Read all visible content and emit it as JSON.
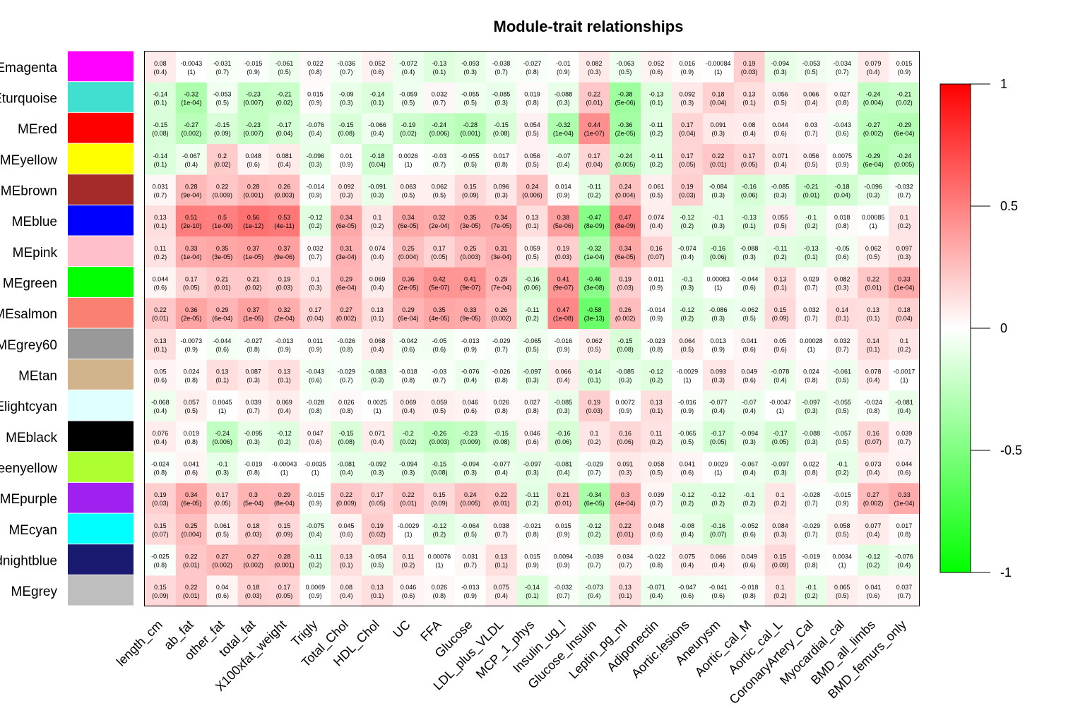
{
  "chart_data": {
    "type": "heatmap",
    "title": "Module-trait relationships",
    "rows": [
      "MEmagenta",
      "MEturquoise",
      "MEred",
      "MEyellow",
      "MEbrown",
      "MEblue",
      "MEpink",
      "MEgreen",
      "MEsalmon",
      "MEgrey60",
      "MEtan",
      "MElightcyan",
      "MEblack",
      "MEgreenyellow",
      "MEpurple",
      "MEcyan",
      "MEmidnightblue",
      "MEgrey"
    ],
    "row_colors": [
      "#ff00ff",
      "#40e0d0",
      "#ff0000",
      "#ffff00",
      "#a52a2a",
      "#0000ff",
      "#ffc0cb",
      "#00ff00",
      "#fa8072",
      "#999999",
      "#d2b48c",
      "#e0ffff",
      "#000000",
      "#adff2f",
      "#a020f0",
      "#00ffff",
      "#191970",
      "#bebebe"
    ],
    "columns": [
      "length_cm",
      "ab_fat",
      "other_fat",
      "total_fat",
      "X100xfat_weight",
      "Trigly",
      "Total_Chol",
      "HDL_Chol",
      "UC",
      "FFA",
      "Glucose",
      "LDL_plus_VLDL",
      "MCP_1_phys",
      "Insulin_ug_l",
      "Glucose_Insulin",
      "Leptin_pg_ml",
      "Adiponectin",
      "Aortic.lesions",
      "Aneurysm",
      "Aortic_cal_M",
      "Aortic_cal_L",
      "CoronaryArtery_Cal",
      "Myocardial_cal",
      "BMD_all_limbs",
      "BMD_femurs_only"
    ],
    "correlations": [
      [
        "0.08",
        "-0.0043",
        "-0.031",
        "-0.015",
        "-0.061",
        "0.022",
        "-0.036",
        "0.052",
        "-0.072",
        "-0.13",
        "-0.093",
        "-0.038",
        "-0.027",
        "-0.01",
        "0.082",
        "-0.063",
        "0.052",
        "0.016",
        "-0.00084",
        "0.19",
        "-0.094",
        "-0.053",
        "-0.034",
        "0.079",
        "0.015"
      ],
      [
        "-0.14",
        "-0.32",
        "-0.053",
        "-0.23",
        "-0.21",
        "0.015",
        "-0.09",
        "-0.14",
        "-0.059",
        "0.032",
        "-0.055",
        "-0.085",
        "0.019",
        "-0.088",
        "0.22",
        "-0.38",
        "-0.13",
        "0.092",
        "0.18",
        "0.13",
        "0.056",
        "0.066",
        "0.027",
        "-0.24",
        "-0.21"
      ],
      [
        "-0.15",
        "-0.27",
        "-0.15",
        "-0.23",
        "-0.17",
        "-0.076",
        "-0.15",
        "-0.066",
        "-0.19",
        "-0.24",
        "-0.28",
        "-0.15",
        "0.054",
        "-0.32",
        "0.44",
        "-0.36",
        "-0.11",
        "0.17",
        "0.091",
        "0.08",
        "0.044",
        "0.03",
        "-0.043",
        "-0.27",
        "-0.29"
      ],
      [
        "-0.14",
        "-0.067",
        "0.2",
        "0.048",
        "0.081",
        "-0.096",
        "0.01",
        "-0.18",
        "0.0026",
        "-0.03",
        "-0.055",
        "0.017",
        "0.056",
        "-0.07",
        "0.17",
        "-0.24",
        "-0.11",
        "0.17",
        "0.22",
        "0.17",
        "0.071",
        "0.056",
        "0.0075",
        "-0.29",
        "-0.24"
      ],
      [
        "0.031",
        "0.28",
        "0.22",
        "0.28",
        "0.26",
        "-0.014",
        "0.092",
        "-0.091",
        "0.063",
        "0.062",
        "0.15",
        "0.096",
        "0.24",
        "0.014",
        "-0.11",
        "0.24",
        "0.061",
        "0.19",
        "-0.084",
        "-0.16",
        "-0.085",
        "-0.21",
        "-0.18",
        "-0.096",
        "-0.032"
      ],
      [
        "0.13",
        "0.51",
        "0.5",
        "0.56",
        "0.53",
        "-0.12",
        "0.34",
        "0.1",
        "0.34",
        "0.32",
        "0.35",
        "0.34",
        "0.13",
        "0.38",
        "-0.47",
        "0.47",
        "0.074",
        "-0.12",
        "-0.1",
        "-0.13",
        "0.055",
        "-0.1",
        "0.018",
        "0.00085",
        "0.1"
      ],
      [
        "0.11",
        "0.33",
        "0.35",
        "0.37",
        "0.37",
        "0.032",
        "0.31",
        "0.074",
        "0.25",
        "0.17",
        "0.25",
        "0.31",
        "0.059",
        "0.19",
        "-0.32",
        "0.34",
        "0.16",
        "-0.074",
        "-0.16",
        "-0.088",
        "-0.11",
        "-0.13",
        "-0.05",
        "0.062",
        "0.097"
      ],
      [
        "0.044",
        "0.17",
        "0.21",
        "0.21",
        "0.19",
        "0.1",
        "0.29",
        "0.069",
        "0.36",
        "0.42",
        "0.41",
        "0.29",
        "-0.16",
        "0.41",
        "-0.46",
        "0.19",
        "0.011",
        "-0.1",
        "0.00083",
        "-0.044",
        "0.13",
        "0.029",
        "0.082",
        "0.22",
        "0.33"
      ],
      [
        "0.22",
        "0.36",
        "0.29",
        "0.37",
        "0.32",
        "0.17",
        "0.27",
        "0.13",
        "0.29",
        "0.35",
        "0.33",
        "0.26",
        "-0.11",
        "0.47",
        "-0.58",
        "0.26",
        "-0.014",
        "-0.12",
        "-0.086",
        "-0.062",
        "0.15",
        "0.032",
        "0.14",
        "0.13",
        "0.18"
      ],
      [
        "0.13",
        "-0.0073",
        "-0.044",
        "-0.027",
        "-0.013",
        "0.011",
        "-0.026",
        "0.068",
        "-0.042",
        "-0.05",
        "-0.013",
        "-0.029",
        "-0.065",
        "-0.016",
        "0.062",
        "-0.15",
        "-0.023",
        "0.064",
        "0.013",
        "0.041",
        "0.05",
        "0.00028",
        "0.032",
        "0.14",
        "0.1"
      ],
      [
        "0.05",
        "0.024",
        "0.13",
        "0.087",
        "0.13",
        "-0.043",
        "-0.029",
        "-0.083",
        "-0.018",
        "-0.03",
        "-0.076",
        "-0.026",
        "-0.097",
        "0.066",
        "-0.14",
        "-0.085",
        "-0.12",
        "-0.0029",
        "0.093",
        "0.049",
        "-0.078",
        "0.024",
        "-0.061",
        "0.078",
        "-0.0017"
      ],
      [
        "-0.068",
        "0.057",
        "0.0045",
        "0.039",
        "0.069",
        "-0.028",
        "0.026",
        "0.0025",
        "0.069",
        "0.059",
        "0.046",
        "0.026",
        "0.027",
        "-0.085",
        "0.19",
        "0.0072",
        "0.13",
        "-0.016",
        "-0.077",
        "-0.07",
        "-0.0047",
        "-0.097",
        "-0.055",
        "-0.024",
        "-0.081"
      ],
      [
        "0.076",
        "0.019",
        "-0.24",
        "-0.095",
        "-0.12",
        "0.047",
        "-0.15",
        "0.071",
        "-0.2",
        "-0.26",
        "-0.23",
        "-0.15",
        "0.046",
        "-0.16",
        "0.1",
        "0.16",
        "0.11",
        "-0.065",
        "-0.17",
        "-0.094",
        "-0.17",
        "-0.088",
        "-0.057",
        "0.16",
        "0.039"
      ],
      [
        "-0.024",
        "0.041",
        "-0.1",
        "-0.019",
        "-0.00043",
        "-0.0035",
        "-0.081",
        "-0.092",
        "-0.094",
        "-0.15",
        "-0.094",
        "-0.077",
        "-0.097",
        "-0.081",
        "-0.029",
        "0.091",
        "0.058",
        "0.041",
        "0.0029",
        "-0.067",
        "-0.097",
        "0.022",
        "-0.1",
        "0.073",
        "0.044"
      ],
      [
        "0.19",
        "0.34",
        "0.17",
        "0.3",
        "0.29",
        "-0.015",
        "0.22",
        "0.17",
        "0.22",
        "0.15",
        "0.24",
        "0.22",
        "-0.11",
        "0.21",
        "-0.34",
        "0.3",
        "0.039",
        "-0.12",
        "-0.12",
        "-0.1",
        "0.1",
        "-0.028",
        "-0.015",
        "0.27",
        "0.33"
      ],
      [
        "0.15",
        "0.25",
        "0.061",
        "0.18",
        "0.15",
        "-0.075",
        "0.045",
        "0.19",
        "-0.0029",
        "-0.12",
        "-0.064",
        "0.038",
        "-0.021",
        "0.015",
        "-0.12",
        "0.22",
        "0.048",
        "-0.08",
        "-0.16",
        "-0.052",
        "0.084",
        "-0.029",
        "0.058",
        "0.077",
        "0.017"
      ],
      [
        "-0.025",
        "0.22",
        "0.27",
        "0.27",
        "0.28",
        "-0.11",
        "0.13",
        "-0.054",
        "0.11",
        "0.00076",
        "0.031",
        "0.13",
        "0.015",
        "0.0094",
        "-0.039",
        "0.034",
        "-0.022",
        "0.075",
        "0.066",
        "0.049",
        "0.15",
        "-0.019",
        "0.0034",
        "-0.12",
        "-0.076"
      ],
      [
        "0.15",
        "0.22",
        "0.04",
        "0.18",
        "0.17",
        "0.0069",
        "0.08",
        "0.13",
        "0.046",
        "0.026",
        "-0.013",
        "0.075",
        "-0.14",
        "-0.032",
        "-0.073",
        "0.13",
        "-0.071",
        "-0.047",
        "-0.041",
        "-0.018",
        "0.1",
        "-0.1",
        "0.065",
        "0.041",
        "0.037"
      ]
    ],
    "pvalues": [
      [
        "(0.4)",
        "(1)",
        "(0.7)",
        "(0.9)",
        "(0.5)",
        "(0.8)",
        "(0.7)",
        "(0.6)",
        "(0.4)",
        "(0.1)",
        "(0.3)",
        "(0.7)",
        "(0.8)",
        "(0.9)",
        "(0.3)",
        "(0.5)",
        "(0.6)",
        "(0.9)",
        "(1)",
        "(0.03)",
        "(0.3)",
        "(0.5)",
        "(0.7)",
        "(0.4)",
        "(0.9)"
      ],
      [
        "(0.1)",
        "(1e-04)",
        "(0.5)",
        "(0.007)",
        "(0.02)",
        "(0.9)",
        "(0.3)",
        "(0.1)",
        "(0.5)",
        "(0.7)",
        "(0.5)",
        "(0.3)",
        "(0.8)",
        "(0.3)",
        "(0.01)",
        "(5e-06)",
        "(0.1)",
        "(0.3)",
        "(0.04)",
        "(0.1)",
        "(0.5)",
        "(0.4)",
        "(0.8)",
        "(0.004)",
        "(0.02)"
      ],
      [
        "(0.08)",
        "(0.002)",
        "(0.09)",
        "(0.007)",
        "(0.04)",
        "(0.4)",
        "(0.08)",
        "(0.4)",
        "(0.02)",
        "(0.006)",
        "(0.001)",
        "(0.08)",
        "(0.5)",
        "(1e-04)",
        "(1e-07)",
        "(2e-05)",
        "(0.2)",
        "(0.04)",
        "(0.3)",
        "(0.4)",
        "(0.6)",
        "(0.7)",
        "(0.6)",
        "(0.002)",
        "(6e-04)"
      ],
      [
        "(0.1)",
        "(0.4)",
        "(0.02)",
        "(0.6)",
        "(0.4)",
        "(0.3)",
        "(0.9)",
        "(0.04)",
        "(1)",
        "(0.7)",
        "(0.5)",
        "(0.8)",
        "(0.5)",
        "(0.4)",
        "(0.04)",
        "(0.005)",
        "(0.2)",
        "(0.05)",
        "(0.01)",
        "(0.05)",
        "(0.4)",
        "(0.5)",
        "(0.9)",
        "(6e-04)",
        "(0.005)"
      ],
      [
        "(0.7)",
        "(9e-04)",
        "(0.009)",
        "(0.001)",
        "(0.003)",
        "(0.9)",
        "(0.3)",
        "(0.3)",
        "(0.5)",
        "(0.5)",
        "(0.09)",
        "(0.3)",
        "(0.006)",
        "(0.9)",
        "(0.2)",
        "(0.004)",
        "(0.5)",
        "(0.03)",
        "(0.3)",
        "(0.06)",
        "(0.3)",
        "(0.01)",
        "(0.04)",
        "(0.3)",
        "(0.7)"
      ],
      [
        "(0.1)",
        "(2e-10)",
        "(1e-09)",
        "(1e-12)",
        "(4e-11)",
        "(0.2)",
        "(6e-05)",
        "(0.2)",
        "(6e-05)",
        "(2e-04)",
        "(3e-05)",
        "(7e-05)",
        "(0.1)",
        "(5e-06)",
        "(8e-09)",
        "(8e-09)",
        "(0.4)",
        "(0.2)",
        "(0.3)",
        "(0.1)",
        "(0.5)",
        "(0.2)",
        "(0.8)",
        "(1)",
        "(0.2)"
      ],
      [
        "(0.2)",
        "(1e-04)",
        "(3e-05)",
        "(1e-05)",
        "(9e-06)",
        "(0.7)",
        "(3e-04)",
        "(0.4)",
        "(0.004)",
        "(0.05)",
        "(0.003)",
        "(3e-04)",
        "(0.5)",
        "(0.03)",
        "(1e-04)",
        "(6e-05)",
        "(0.07)",
        "(0.4)",
        "(0.06)",
        "(0.3)",
        "(0.2)",
        "(0.1)",
        "(0.6)",
        "(0.5)",
        "(0.3)"
      ],
      [
        "(0.6)",
        "(0.05)",
        "(0.01)",
        "(0.02)",
        "(0.03)",
        "(0.3)",
        "(6e-04)",
        "(0.4)",
        "(2e-05)",
        "(5e-07)",
        "(9e-07)",
        "(7e-04)",
        "(0.06)",
        "(9e-07)",
        "(3e-08)",
        "(0.03)",
        "(0.9)",
        "(0.3)",
        "(1)",
        "(0.6)",
        "(0.1)",
        "(0.7)",
        "(0.3)",
        "(0.01)",
        "(1e-04)"
      ],
      [
        "(0.01)",
        "(2e-05)",
        "(6e-04)",
        "(1e-05)",
        "(2e-04)",
        "(0.04)",
        "(0.002)",
        "(0.1)",
        "(6e-04)",
        "(4e-05)",
        "(9e-05)",
        "(0.002)",
        "(0.2)",
        "(1e-08)",
        "(3e-13)",
        "(0.002)",
        "(0.9)",
        "(0.2)",
        "(0.3)",
        "(0.5)",
        "(0.09)",
        "(0.7)",
        "(0.1)",
        "(0.1)",
        "(0.04)"
      ],
      [
        "(0.1)",
        "(0.9)",
        "(0.6)",
        "(0.8)",
        "(0.9)",
        "(0.9)",
        "(0.8)",
        "(0.4)",
        "(0.6)",
        "(0.6)",
        "(0.9)",
        "(0.7)",
        "(0.5)",
        "(0.9)",
        "(0.5)",
        "(0.08)",
        "(0.8)",
        "(0.5)",
        "(0.9)",
        "(0.6)",
        "(0.6)",
        "(1)",
        "(0.7)",
        "(0.1)",
        "(0.2)"
      ],
      [
        "(0.6)",
        "(0.8)",
        "(0.1)",
        "(0.3)",
        "(0.1)",
        "(0.6)",
        "(0.7)",
        "(0.3)",
        "(0.8)",
        "(0.7)",
        "(0.4)",
        "(0.8)",
        "(0.3)",
        "(0.4)",
        "(0.1)",
        "(0.3)",
        "(0.2)",
        "(1)",
        "(0.3)",
        "(0.6)",
        "(0.4)",
        "(0.8)",
        "(0.5)",
        "(0.4)",
        "(1)"
      ],
      [
        "(0.4)",
        "(0.5)",
        "(1)",
        "(0.7)",
        "(0.4)",
        "(0.8)",
        "(0.8)",
        "(1)",
        "(0.4)",
        "(0.5)",
        "(0.6)",
        "(0.8)",
        "(0.8)",
        "(0.3)",
        "(0.03)",
        "(0.9)",
        "(0.1)",
        "(0.9)",
        "(0.4)",
        "(0.4)",
        "(1)",
        "(0.3)",
        "(0.5)",
        "(0.8)",
        "(0.4)"
      ],
      [
        "(0.4)",
        "(0.8)",
        "(0.006)",
        "(0.3)",
        "(0.2)",
        "(0.6)",
        "(0.08)",
        "(0.4)",
        "(0.02)",
        "(0.003)",
        "(0.009)",
        "(0.08)",
        "(0.6)",
        "(0.06)",
        "(0.2)",
        "(0.06)",
        "(0.2)",
        "(0.5)",
        "(0.05)",
        "(0.3)",
        "(0.05)",
        "(0.3)",
        "(0.5)",
        "(0.07)",
        "(0.7)"
      ],
      [
        "(0.8)",
        "(0.6)",
        "(0.3)",
        "(0.8)",
        "(1)",
        "(1)",
        "(0.4)",
        "(0.3)",
        "(0.3)",
        "(0.08)",
        "(0.3)",
        "(0.4)",
        "(0.3)",
        "(0.4)",
        "(0.7)",
        "(0.3)",
        "(0.5)",
        "(0.6)",
        "(1)",
        "(0.4)",
        "(0.3)",
        "(0.8)",
        "(0.2)",
        "(0.4)",
        "(0.6)"
      ],
      [
        "(0.03)",
        "(6e-05)",
        "(0.05)",
        "(5e-04)",
        "(8e-04)",
        "(0.9)",
        "(0.009)",
        "(0.05)",
        "(0.01)",
        "(0.09)",
        "(0.005)",
        "(0.01)",
        "(0.2)",
        "(0.01)",
        "(6e-05)",
        "(4e-04)",
        "(0.7)",
        "(0.2)",
        "(0.2)",
        "(0.2)",
        "(0.2)",
        "(0.7)",
        "(0.9)",
        "(0.002)",
        "(1e-04)"
      ],
      [
        "(0.07)",
        "(0.004)",
        "(0.5)",
        "(0.03)",
        "(0.09)",
        "(0.4)",
        "(0.6)",
        "(0.02)",
        "(1)",
        "(0.2)",
        "(0.5)",
        "(0.7)",
        "(0.8)",
        "(0.9)",
        "(0.2)",
        "(0.01)",
        "(0.6)",
        "(0.4)",
        "(0.07)",
        "(0.6)",
        "(0.3)",
        "(0.7)",
        "(0.5)",
        "(0.4)",
        "(0.8)"
      ],
      [
        "(0.8)",
        "(0.01)",
        "(0.002)",
        "(0.002)",
        "(0.001)",
        "(0.2)",
        "(0.1)",
        "(0.5)",
        "(0.2)",
        "(1)",
        "(0.7)",
        "(0.1)",
        "(0.9)",
        "(0.9)",
        "(0.7)",
        "(0.7)",
        "(0.8)",
        "(0.4)",
        "(0.4)",
        "(0.6)",
        "(0.09)",
        "(0.8)",
        "(1)",
        "(0.2)",
        "(0.4)"
      ],
      [
        "(0.09)",
        "(0.01)",
        "(0.6)",
        "(0.03)",
        "(0.05)",
        "(0.9)",
        "(0.4)",
        "(0.1)",
        "(0.6)",
        "(0.8)",
        "(0.9)",
        "(0.4)",
        "(0.1)",
        "(0.7)",
        "(0.4)",
        "(0.1)",
        "(0.4)",
        "(0.6)",
        "(0.6)",
        "(0.8)",
        "(0.2)",
        "(0.2)",
        "(0.5)",
        "(0.6)",
        "(0.7)"
      ]
    ],
    "scale": {
      "range": [
        -1,
        1
      ],
      "colors": {
        "low": "#00ff00",
        "mid": "#ffffff",
        "high": "#ff0000"
      },
      "ticks": [
        "1",
        "0.5",
        "0",
        "-0.5",
        "-1"
      ],
      "tick_values": [
        1,
        0.5,
        0,
        -0.5,
        -1
      ]
    },
    "legend_placement": "right"
  }
}
